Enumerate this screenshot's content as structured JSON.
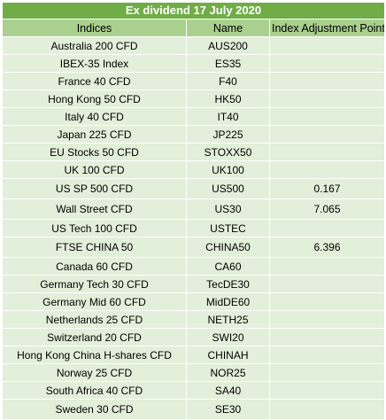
{
  "title": "Ex dividend 17 July 2020",
  "columns": [
    "Indices",
    "Name",
    "Index Adjustment Points"
  ],
  "rows": [
    {
      "index": "Australia 200 CFD",
      "name": "AUS200",
      "points": ""
    },
    {
      "index": "IBEX-35 Index",
      "name": "ES35",
      "points": ""
    },
    {
      "index": "France 40 CFD",
      "name": "F40",
      "points": ""
    },
    {
      "index": "Hong Kong 50 CFD",
      "name": "HK50",
      "points": ""
    },
    {
      "index": "Italy 40 CFD",
      "name": "IT40",
      "points": ""
    },
    {
      "index": "Japan 225 CFD",
      "name": "JP225",
      "points": ""
    },
    {
      "index": "EU Stocks 50 CFD",
      "name": "STOXX50",
      "points": ""
    },
    {
      "index": "UK 100 CFD",
      "name": "UK100",
      "points": ""
    },
    {
      "index": "US SP 500 CFD",
      "name": "US500",
      "points": "0.167"
    },
    {
      "index": "Wall Street CFD",
      "name": "US30",
      "points": "7.065"
    },
    {
      "index": "US Tech 100 CFD",
      "name": "USTEC",
      "points": ""
    },
    {
      "index": "FTSE CHINA 50",
      "name": "CHINA50",
      "points": "6.396"
    },
    {
      "index": "Canada 60 CFD",
      "name": "CA60",
      "points": ""
    },
    {
      "index": "Germany Tech 30 CFD",
      "name": "TecDE30",
      "points": ""
    },
    {
      "index": "Germany Mid 60 CFD",
      "name": "MidDE60",
      "points": ""
    },
    {
      "index": "Netherlands 25 CFD",
      "name": "NETH25",
      "points": ""
    },
    {
      "index": "Switzerland 20 CFD",
      "name": "SWI20",
      "points": ""
    },
    {
      "index": "Hong Kong China H-shares CFD",
      "name": "CHINAH",
      "points": ""
    },
    {
      "index": "Norway 25 CFD",
      "name": "NOR25",
      "points": ""
    },
    {
      "index": "South Africa 40 CFD",
      "name": "SA40",
      "points": ""
    },
    {
      "index": "Sweden 30 CFD",
      "name": "SE30",
      "points": ""
    }
  ]
}
